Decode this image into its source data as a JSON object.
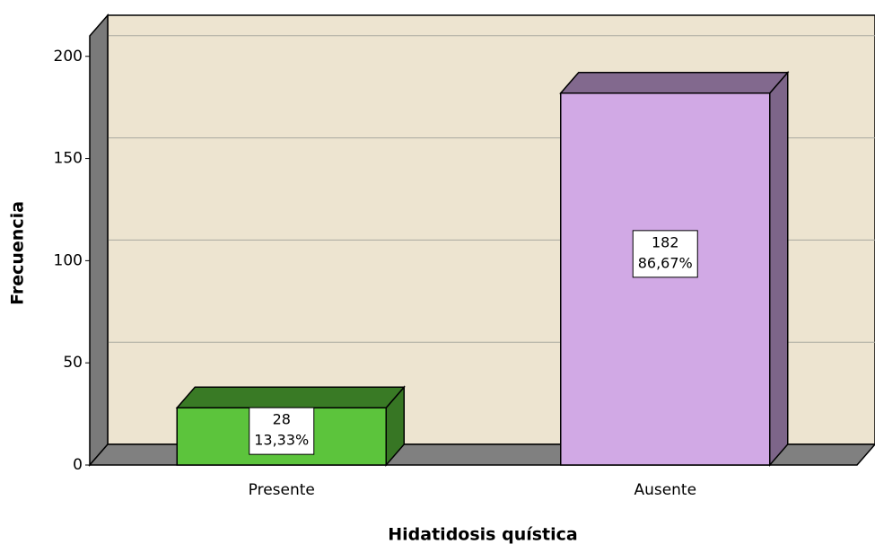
{
  "chart_data": {
    "type": "bar3d",
    "x_label": "Hidatidosis quística",
    "y_label": "Frecuencia",
    "categories": [
      "Presente",
      "Ausente"
    ],
    "values": [
      28,
      182
    ],
    "percentages": [
      13.33,
      86.67
    ],
    "percentage_labels": [
      "13,33%",
      "86,67%"
    ],
    "colors": [
      "#5cc43c",
      "#d1a9e5"
    ],
    "ylim": [
      0,
      210
    ],
    "yticks": [
      0,
      50,
      100,
      150,
      200
    ],
    "grid": true
  }
}
